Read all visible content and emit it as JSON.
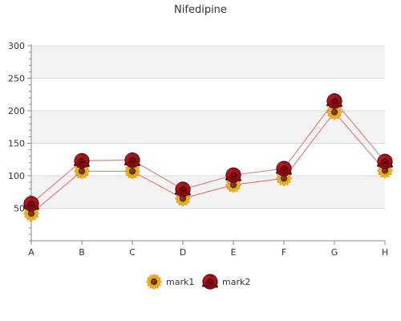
{
  "chart_data": {
    "type": "line",
    "title": "Nifedipine",
    "xlabel": "",
    "ylabel": "",
    "categories": [
      "A",
      "B",
      "C",
      "D",
      "E",
      "F",
      "G",
      "H"
    ],
    "ylim": [
      0,
      300
    ],
    "yticks": [
      50,
      100,
      150,
      200,
      250,
      300
    ],
    "grid": true,
    "banded_background": true,
    "legend_position": "bottom-center",
    "series": [
      {
        "name": "mark1",
        "marker_icon": "sunflower-icon",
        "values": [
          42,
          107,
          107,
          65,
          86,
          96,
          198,
          108
        ],
        "color": "#e8a23a"
      },
      {
        "name": "mark2",
        "marker_icon": "rose-icon",
        "values": [
          57,
          123,
          124,
          79,
          101,
          111,
          215,
          122
        ],
        "color": "#a5151b"
      }
    ],
    "line_color": "#e06a66"
  }
}
